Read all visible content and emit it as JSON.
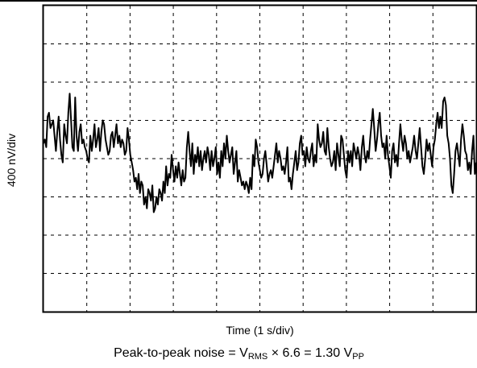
{
  "chart_data": {
    "type": "line",
    "title": "",
    "xlabel": "Time (1 s/div)",
    "ylabel": "400 nV/div",
    "x_divisions": 10,
    "y_divisions": 8,
    "xlim": [
      0,
      10
    ],
    "ylim": [
      -4,
      4
    ],
    "grid": true,
    "grid_style": "dashed",
    "line_color": "#000000",
    "series": [
      {
        "values": [
          0.4,
          0.5,
          0.3,
          1.1,
          1.2,
          0.8,
          0.9,
          1.0,
          0.6,
          0.2,
          0.7,
          1.1,
          0.5,
          0.1,
          -0.1,
          0.9,
          0.6,
          0.4,
          1.2,
          1.7,
          1.0,
          0.3,
          0.2,
          1.6,
          0.6,
          0.2,
          0.7,
          0.9,
          0.4,
          0.5,
          0.3,
          0.2,
          0.0,
          -0.1,
          0.6,
          0.2,
          0.5,
          0.9,
          0.3,
          0.5,
          0.8,
          0.2,
          0.7,
          1.0,
          0.9,
          0.5,
          0.3,
          0.1,
          0.2,
          0.6,
          0.7,
          0.3,
          0.6,
          0.9,
          0.4,
          0.6,
          0.3,
          0.5,
          0.4,
          0.1,
          0.2,
          0.8,
          0.5,
          0.1,
          -0.1,
          -0.3,
          -0.6,
          -0.5,
          -0.8,
          -0.4,
          -0.9,
          -0.6,
          -0.7,
          -1.2,
          -1.0,
          -1.3,
          -0.8,
          -0.9,
          -1.1,
          -0.7,
          -1.4,
          -1.3,
          -1.0,
          -1.2,
          -0.8,
          -0.9,
          -1.1,
          -0.6,
          -0.9,
          -0.2,
          -0.7,
          -0.4,
          -0.5,
          0.1,
          -0.3,
          -0.6,
          -0.2,
          -0.5,
          -0.1,
          -0.4,
          -0.7,
          -0.3,
          -0.6,
          -0.5,
          0.3,
          0.7,
          0.2,
          -0.2,
          0.4,
          -0.4,
          0.1,
          -0.1,
          0.3,
          -0.2,
          0.2,
          -0.3,
          0.0,
          0.2,
          -0.1,
          0.3,
          0.1,
          -0.3,
          0.2,
          -0.2,
          0.0,
          0.3,
          -0.4,
          -0.1,
          -0.5,
          0.2,
          -0.2,
          0.4,
          0.0,
          0.6,
          0.2,
          -0.1,
          0.1,
          0.3,
          -0.4,
          -0.1,
          0.2,
          -0.6,
          -0.3,
          -0.5,
          -0.7,
          -0.6,
          -0.8,
          -0.6,
          -0.7,
          -0.9,
          -0.5,
          -0.8,
          0.1,
          -0.2,
          0.5,
          0.3,
          -0.1,
          -0.3,
          -0.5,
          -0.4,
          0.0,
          0.2,
          -0.2,
          -0.6,
          -0.4,
          -0.3,
          -0.5,
          -0.2,
          0.1,
          0.4,
          -0.1,
          0.2,
          0.0,
          -0.3,
          -0.2,
          -0.4,
          -0.1,
          0.3,
          -0.6,
          -0.5,
          -0.8,
          -0.4,
          -0.1,
          0.2,
          -0.3,
          -0.1,
          0.4,
          0.6,
          0.1,
          0.2,
          -0.2,
          0.3,
          0.0,
          -0.1,
          0.2,
          0.4,
          -0.2,
          0.1,
          -0.1,
          0.9,
          0.5,
          0.3,
          0.4,
          0.7,
          0.2,
          0.1,
          0.8,
          0.3,
          0.0,
          -0.2,
          -0.1,
          0.2,
          -0.3,
          0.4,
          0.1,
          -0.2,
          0.6,
          0.5,
          0.1,
          -0.3,
          -0.5,
          0.2,
          -0.1,
          0.2,
          -0.2,
          0.4,
          0.2,
          0.0,
          0.3,
          0.1,
          -0.3,
          0.3,
          0.6,
          0.1,
          -0.1,
          0.2,
          0.0,
          0.5,
          0.9,
          1.3,
          0.8,
          0.2,
          0.5,
          0.9,
          1.2,
          0.6,
          0.3,
          0.4,
          0.0,
          0.6,
          0.1,
          -0.2,
          -0.5,
          0.2,
          0.4,
          -0.1,
          0.1,
          -0.2,
          0.4,
          0.9,
          0.5,
          0.2,
          0.6,
          0.4,
          0.0,
          0.2,
          -0.1,
          0.1,
          0.3,
          0.6,
          0.2,
          0.0,
          0.4,
          0.8,
          0.3,
          -0.2,
          -0.4,
          0.0,
          0.5,
          0.2,
          0.4,
          0.1,
          -0.2,
          0.3,
          0.5,
          0.9,
          1.2,
          0.8,
          1.1,
          0.8,
          1.5,
          1.6,
          1.4,
          0.6,
          0.4,
          0.0,
          -0.7,
          -0.9,
          -0.4,
          0.2,
          0.4,
          0.1,
          -0.2,
          0.5,
          0.9,
          0.6,
          0.2,
          0.1,
          -0.3,
          -0.1,
          -0.4,
          0.2,
          0.6,
          -0.4,
          -0.1
        ]
      }
    ]
  },
  "caption": {
    "prefix": "Peak-to-peak noise = V",
    "sub1": "RMS",
    "middle": " × 6.6 = 1.30 V",
    "sub2": "PP"
  }
}
